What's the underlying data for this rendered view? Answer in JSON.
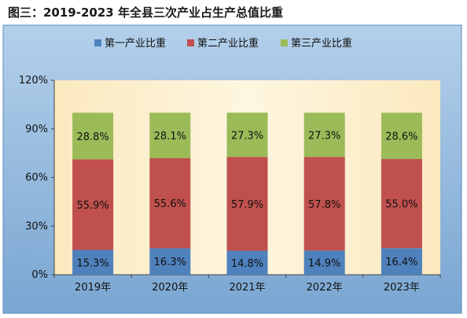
{
  "caption": "图三：2019-2023 年全县三次产业占生产总值比重",
  "chart_data": {
    "type": "bar",
    "stacked": true,
    "categories": [
      "2019年",
      "2020年",
      "2021年",
      "2022年",
      "2023年"
    ],
    "series": [
      {
        "name": "第一产业比重",
        "values": [
          15.3,
          16.3,
          14.8,
          14.9,
          16.4
        ],
        "labels": [
          "15.3%",
          "16.3%",
          "14.8%",
          "14.9%",
          "16.4%"
        ],
        "color": "#4f81bd"
      },
      {
        "name": "第二产业比重",
        "values": [
          55.9,
          55.6,
          57.9,
          57.8,
          55.0
        ],
        "labels": [
          "55.9%",
          "55.6%",
          "57.9%",
          "57.8%",
          "55.0%"
        ],
        "color": "#c0504d"
      },
      {
        "name": "第三产业比重",
        "values": [
          28.8,
          28.1,
          27.3,
          27.3,
          28.6
        ],
        "labels": [
          "28.8%",
          "28.1%",
          "27.3%",
          "27.3%",
          "28.6%"
        ],
        "color": "#9bbb59"
      }
    ],
    "yticks": [
      0,
      30,
      60,
      90,
      120
    ],
    "ytick_labels": [
      "0%",
      "30%",
      "60%",
      "90%",
      "120%"
    ],
    "ylim": [
      0,
      120
    ],
    "legend_position": "top",
    "grid": false,
    "outer_background": "#8fb7d9",
    "plot_background": "#fdf2d2"
  }
}
